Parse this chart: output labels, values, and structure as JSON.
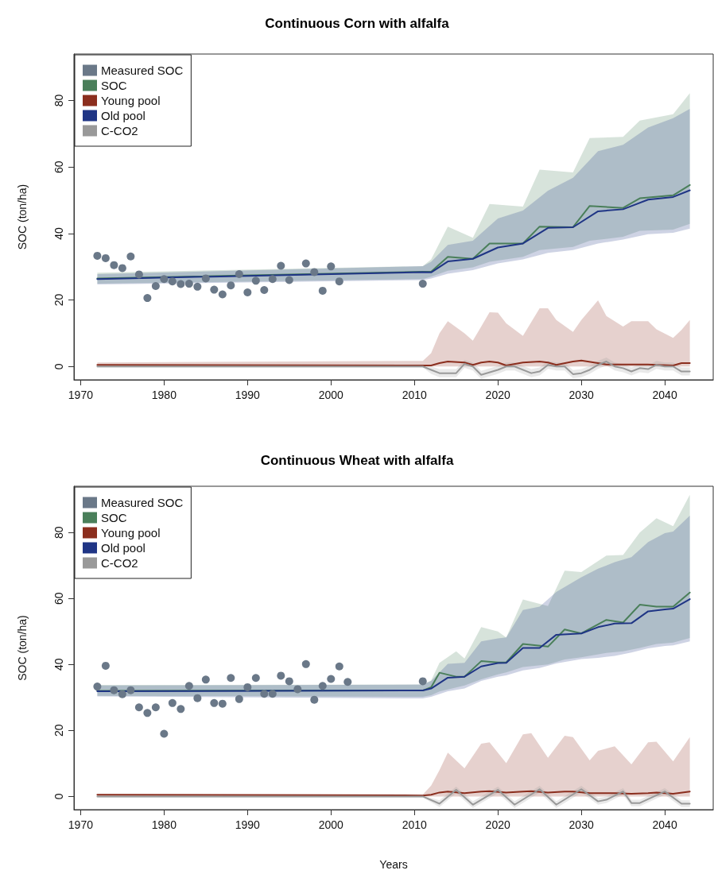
{
  "chart_data": [
    {
      "type": "line",
      "title": "Continuous Corn with alfalfa",
      "ylabel": "SOC (ton/ha)",
      "xlim": [
        1969.2,
        2045.8
      ],
      "ylim": [
        -4,
        94
      ],
      "xticks": [
        1970,
        1980,
        1990,
        2000,
        2010,
        2020,
        2030,
        2040
      ],
      "yticks": [
        0,
        20,
        40,
        60,
        80
      ],
      "grid": false,
      "legend": "top left",
      "line_style": "solid",
      "series": [
        {
          "name": "Measured SOC",
          "type": "scatter",
          "marker": "circle",
          "color": "#6a7888",
          "x": [
            1972,
            1973,
            1974,
            1975,
            1976,
            1977,
            1978,
            1979,
            1980,
            1981,
            1982,
            1983,
            1984,
            1985,
            1986,
            1987,
            1988,
            1989,
            1990,
            1991,
            1992,
            1993,
            1994,
            1995,
            1997,
            1998,
            1999,
            2000,
            2001,
            2011
          ],
          "values": [
            33.3,
            32.6,
            30.5,
            29.6,
            33.1,
            27.7,
            20.6,
            24.2,
            26.3,
            25.6,
            24.8,
            24.9,
            24.0,
            26.5,
            23.1,
            21.7,
            24.4,
            27.8,
            22.3,
            25.8,
            23.0,
            26.3,
            30.3,
            26.0,
            31.0,
            28.4,
            22.8,
            30.1,
            25.6,
            24.9
          ]
        },
        {
          "name": "SOC",
          "color": "#4a7f5a",
          "x": [
            1972,
            2011,
            2012,
            2014,
            2017,
            2019,
            2023,
            2025,
            2029,
            2031,
            2035,
            2037,
            2041,
            2043
          ],
          "values": [
            26.5,
            28.5,
            28.5,
            33.0,
            32.4,
            37.0,
            37.0,
            42.1,
            41.9,
            48.3,
            47.7,
            50.6,
            51.5,
            54.6
          ],
          "upper": [
            28.2,
            30.2,
            32.2,
            42.1,
            38.7,
            48.9,
            48.1,
            59.2,
            58.4,
            68.7,
            69.1,
            74.0,
            75.9,
            82.2
          ],
          "lower": [
            24.9,
            26.3,
            27.0,
            28.8,
            29.8,
            31.5,
            33.0,
            35.0,
            36.0,
            37.8,
            39.0,
            40.8,
            41.2,
            42.9
          ]
        },
        {
          "name": "Young pool",
          "color": "#8b2e1e",
          "x": [
            1972,
            2011,
            2012,
            2013,
            2014,
            2016,
            2017,
            2018,
            2019,
            2020,
            2021,
            2023,
            2025,
            2026,
            2027,
            2029,
            2030,
            2032,
            2033,
            2035,
            2036,
            2038,
            2039,
            2041,
            2042,
            2043
          ],
          "values": [
            0.5,
            0.3,
            0.3,
            1.0,
            1.5,
            1.2,
            0.5,
            1.2,
            1.5,
            1.2,
            0.3,
            1.2,
            1.5,
            1.2,
            0.5,
            1.5,
            1.8,
            1.0,
            0.6,
            0.6,
            0.6,
            0.6,
            0.5,
            0.3,
            1.0,
            1.0
          ],
          "upper": [
            1.2,
            1.7,
            4.0,
            10,
            13.6,
            10,
            7.8,
            12,
            16.3,
            16.2,
            13,
            9.2,
            17.5,
            17.5,
            14,
            10.4,
            14,
            19.9,
            15.2,
            12.0,
            13.6,
            13.6,
            11.2,
            8.6,
            11,
            14.0
          ],
          "lower": [
            0,
            0,
            0,
            0,
            0,
            0,
            0,
            0,
            0,
            0,
            0,
            0,
            0,
            0,
            0,
            0,
            0,
            0,
            0,
            0,
            0,
            0,
            0,
            0,
            0,
            0
          ]
        },
        {
          "name": "Old pool",
          "color": "#1f3585",
          "x": [
            1972,
            2011,
            2012,
            2014,
            2017,
            2020,
            2023,
            2026,
            2029,
            2032,
            2035,
            2038,
            2041,
            2043
          ],
          "values": [
            26.3,
            28.4,
            28.3,
            31.6,
            32.4,
            35.8,
            37.0,
            41.7,
            41.9,
            46.7,
            47.3,
            50.2,
            51.0,
            53.0
          ],
          "upper": [
            27.8,
            30.2,
            31.5,
            36.6,
            37.8,
            44.5,
            46.9,
            52.9,
            56.8,
            64.8,
            66.7,
            71.9,
            74.7,
            77.5
          ],
          "lower": [
            24.7,
            26.0,
            26.5,
            27.9,
            29.0,
            31.0,
            32.2,
            34.2,
            35.0,
            37.0,
            38.2,
            39.8,
            40.2,
            41.5
          ]
        },
        {
          "name": "C-CO2",
          "color": "#999999",
          "x": [
            1972,
            2011,
            2012,
            2013,
            2015,
            2016,
            2017,
            2018,
            2020,
            2021,
            2022,
            2024,
            2025,
            2026,
            2027,
            2028,
            2029,
            2030,
            2031,
            2032,
            2033,
            2034,
            2035,
            2036,
            2037,
            2038,
            2039,
            2040,
            2041,
            2042,
            2043
          ],
          "values": [
            0,
            0,
            -1,
            -2,
            -2,
            0.8,
            0,
            -2.5,
            -1,
            0,
            0,
            -2,
            -1.5,
            0.5,
            0,
            0,
            -2.3,
            -2,
            -1,
            0.5,
            1.5,
            0,
            -0.5,
            -1.5,
            -0.5,
            -0.8,
            0.5,
            0,
            0,
            -1.5,
            -1.5
          ],
          "upper": [
            0.3,
            0.3,
            0,
            -0.8,
            -0.8,
            2,
            1.2,
            -1.3,
            0.2,
            1.2,
            1.2,
            -0.8,
            -0.3,
            1.7,
            1.2,
            1.2,
            -1.1,
            -0.8,
            0.2,
            1.7,
            2.7,
            1.2,
            0.7,
            -0.3,
            0.7,
            0.4,
            1.7,
            1.2,
            1.2,
            -0.3,
            -0.3
          ],
          "lower": [
            -0.3,
            -0.3,
            -2.2,
            -3.2,
            -3.2,
            -0.4,
            -1.2,
            -3.7,
            -2.2,
            -1.2,
            -1.2,
            -3.2,
            -2.7,
            -0.7,
            -1.2,
            -1.2,
            -3.5,
            -3.2,
            -2.2,
            -0.7,
            0.3,
            -1.2,
            -1.7,
            -2.7,
            -1.7,
            -2.0,
            -0.7,
            -1.2,
            -1.2,
            -2.7,
            -2.7
          ]
        }
      ]
    },
    {
      "type": "line",
      "title": "Continuous Wheat with alfalfa",
      "xlabel": "Years",
      "ylabel": "SOC (ton/ha)",
      "xlim": [
        1969.2,
        2045.8
      ],
      "ylim": [
        -4,
        94
      ],
      "xticks": [
        1970,
        1980,
        1990,
        2000,
        2010,
        2020,
        2030,
        2040
      ],
      "yticks": [
        0,
        20,
        40,
        60,
        80
      ],
      "grid": false,
      "legend": "top left",
      "line_style": "solid",
      "series": [
        {
          "name": "Measured SOC",
          "type": "scatter",
          "marker": "circle",
          "color": "#6a7888",
          "x": [
            1972,
            1973,
            1974,
            1975,
            1976,
            1977,
            1978,
            1979,
            1980,
            1981,
            1982,
            1983,
            1984,
            1985,
            1986,
            1987,
            1988,
            1989,
            1990,
            1991,
            1992,
            1993,
            1994,
            1995,
            1996,
            1997,
            1998,
            1999,
            2000,
            2001,
            2002,
            2011
          ],
          "values": [
            33.3,
            39.6,
            32.2,
            31.0,
            32.2,
            27.0,
            25.3,
            27.0,
            19.0,
            28.3,
            26.5,
            33.5,
            29.8,
            35.4,
            28.3,
            28.1,
            35.9,
            29.5,
            33.1,
            35.9,
            31.1,
            31.1,
            36.6,
            34.9,
            32.5,
            40.1,
            29.3,
            33.5,
            35.6,
            39.4,
            34.7,
            34.9
          ]
        },
        {
          "name": "SOC",
          "color": "#4a7f5a",
          "x": [
            1972,
            2011,
            2012,
            2013,
            2015,
            2016,
            2018,
            2020,
            2021,
            2023,
            2026,
            2028,
            2030,
            2033,
            2035,
            2037,
            2039,
            2041,
            2043
          ],
          "values": [
            32.0,
            32.1,
            33.1,
            37.5,
            36.3,
            36.3,
            41.0,
            40.6,
            40.6,
            46.2,
            45.4,
            50.6,
            49.4,
            53.5,
            52.7,
            58.1,
            57.5,
            57.5,
            61.8
          ],
          "upper": [
            33.8,
            33.9,
            35.1,
            40.5,
            44,
            41.8,
            51.3,
            50,
            48.2,
            59.7,
            57.7,
            68.4,
            68,
            73,
            73.2,
            80,
            84.3,
            81.9,
            91.4
          ],
          "lower": [
            30.5,
            30.2,
            30.7,
            31.8,
            33,
            33.6,
            35.5,
            37,
            37.6,
            39.2,
            40,
            41.5,
            42.2,
            43.5,
            44,
            45,
            46.2,
            46.6,
            48.0
          ]
        },
        {
          "name": "Young pool",
          "color": "#8b2e1e",
          "x": [
            1972,
            2011,
            2012,
            2013,
            2014,
            2016,
            2018,
            2019,
            2021,
            2023,
            2024,
            2026,
            2028,
            2029,
            2031,
            2032,
            2034,
            2036,
            2038,
            2039,
            2041,
            2043
          ],
          "values": [
            0.5,
            0.3,
            0.5,
            1.2,
            1.5,
            1.0,
            1.5,
            1.6,
            1.2,
            1.5,
            1.6,
            1.2,
            1.5,
            1.5,
            1.0,
            1.0,
            1.0,
            0.8,
            1.0,
            1.2,
            0.8,
            1.5
          ],
          "upper": [
            0.8,
            0.6,
            3.3,
            8,
            13.3,
            8.5,
            16.0,
            16.4,
            10.1,
            18.8,
            19.2,
            11.7,
            18.4,
            18.0,
            10.9,
            13.8,
            15.2,
            9.7,
            16.4,
            16.6,
            10.6,
            18.0
          ],
          "lower": [
            0,
            0,
            0,
            0,
            0,
            0,
            0,
            0,
            0,
            0,
            0,
            0,
            0,
            0,
            0,
            0,
            0,
            0,
            0,
            0,
            0,
            0
          ]
        },
        {
          "name": "Old pool",
          "color": "#1f3585",
          "x": [
            1972,
            2011,
            2012,
            2014,
            2016,
            2018,
            2020,
            2021,
            2023,
            2025,
            2027,
            2030,
            2032,
            2034,
            2036,
            2038,
            2040,
            2041,
            2043
          ],
          "values": [
            31.9,
            32.1,
            32.7,
            36.0,
            36.3,
            39.4,
            40.4,
            40.5,
            45.0,
            45.0,
            49.0,
            49.4,
            51.3,
            52.4,
            52.5,
            56.1,
            56.7,
            56.9,
            59.8
          ],
          "upper": [
            33.6,
            33.9,
            35.0,
            40.2,
            40.5,
            47.0,
            47.9,
            48.2,
            56.5,
            57.5,
            62.0,
            66.4,
            69.0,
            71.0,
            72.5,
            77.1,
            79.8,
            80.3,
            85.1
          ],
          "lower": [
            30.3,
            29.7,
            30.2,
            31.9,
            32.7,
            35.0,
            36.3,
            36.7,
            38.2,
            38.9,
            40.3,
            41.6,
            42.0,
            42.6,
            43.6,
            44.9,
            45.6,
            45.8,
            47.0
          ]
        },
        {
          "name": "C-CO2",
          "color": "#999999",
          "x": [
            1972,
            2011,
            2013,
            2015,
            2017,
            2020,
            2022,
            2025,
            2027,
            2030,
            2032,
            2033,
            2035,
            2036,
            2037,
            2040,
            2042,
            2043
          ],
          "values": [
            0,
            0,
            -2.2,
            2.0,
            -2.5,
            2.0,
            -2.5,
            2.2,
            -2.5,
            2.2,
            -1.5,
            -1.0,
            1.5,
            -2.0,
            -2.0,
            1.5,
            -2.2,
            -2.2
          ],
          "upper": [
            0.3,
            0.3,
            -1.2,
            3.0,
            -1.5,
            3.0,
            -1.5,
            3.2,
            -1.5,
            3.2,
            -0.5,
            0,
            2.5,
            -1.0,
            -1.0,
            2.5,
            -1.2,
            -1.2
          ],
          "lower": [
            -0.3,
            -0.3,
            -3.2,
            1.0,
            -3.5,
            1.0,
            -3.5,
            1.2,
            -3.5,
            1.2,
            -2.5,
            -2.0,
            0.5,
            -3.0,
            -3.0,
            0.5,
            -3.2,
            -3.2
          ]
        }
      ]
    }
  ]
}
